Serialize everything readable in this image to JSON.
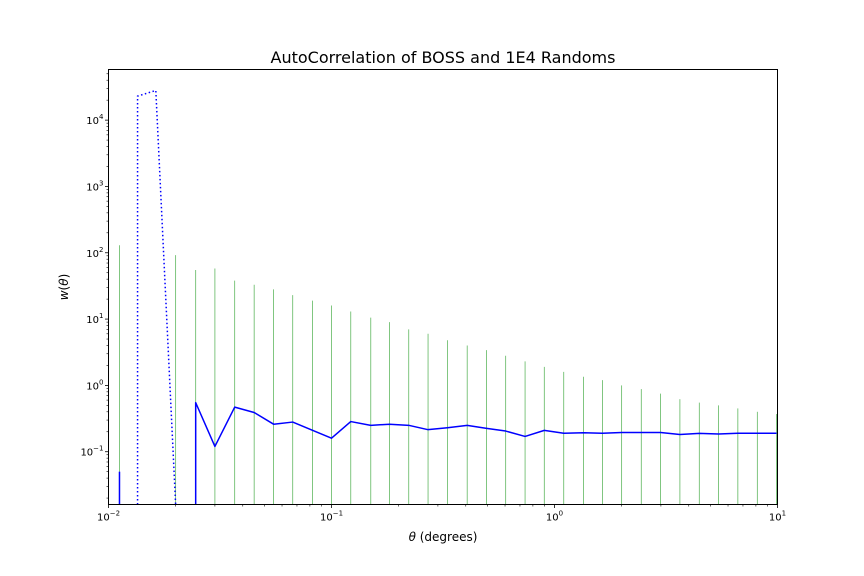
{
  "chart_data": {
    "type": "line",
    "title": "AutoCorrelation of BOSS and 1E4 Randoms",
    "xlabel_var": "θ",
    "xlabel_unit": " (degrees)",
    "ylabel_func": "w",
    "ylabel_var": "θ",
    "xscale": "log",
    "yscale": "log",
    "xlim": [
      0.01,
      10
    ],
    "ylim": [
      0.016,
      58000
    ],
    "x_ticks": [
      {
        "mant": "10",
        "exp": "−2"
      },
      {
        "mant": "10",
        "exp": "−1"
      },
      {
        "mant": "10",
        "exp": "0"
      },
      {
        "mant": "10",
        "exp": "1"
      }
    ],
    "y_ticks": [
      {
        "mant": "10",
        "exp": "−1"
      },
      {
        "mant": "10",
        "exp": "0"
      },
      {
        "mant": "10",
        "exp": "1"
      },
      {
        "mant": "10",
        "exp": "2"
      },
      {
        "mant": "10",
        "exp": "3"
      },
      {
        "mant": "10",
        "exp": "4"
      }
    ],
    "grid": false,
    "legend": "none",
    "series": [
      {
        "kind": "errorbars",
        "color": "#2ca02c",
        "x": [
          0.0112,
          0.0135,
          0.0163,
          0.02,
          0.0246,
          0.03,
          0.0368,
          0.045,
          0.055,
          0.067,
          0.0822,
          0.1,
          0.122,
          0.15,
          0.182,
          0.222,
          0.271,
          0.331,
          0.406,
          0.496,
          0.604,
          0.738,
          0.9,
          1.1,
          1.35,
          1.64,
          2.0,
          2.45,
          2.99,
          3.65,
          4.46,
          5.44,
          6.64,
          8.12,
          9.91
        ],
        "upper": [
          130,
          null,
          null,
          92,
          55,
          58,
          38,
          33,
          28,
          23,
          19,
          16,
          13,
          10.5,
          9,
          7,
          6,
          4.8,
          4,
          3.4,
          2.8,
          2.3,
          1.9,
          1.6,
          1.35,
          1.2,
          1.0,
          0.88,
          0.75,
          0.62,
          0.55,
          0.5,
          0.45,
          0.4,
          0.37
        ]
      },
      {
        "kind": "line",
        "style": "solid",
        "color": "#0000ff",
        "segments": [
          [
            [
              0.0112,
              0.016
            ],
            [
              0.0112,
              0.05
            ]
          ],
          [
            [
              0.0246,
              0.016
            ],
            [
              0.0246,
              0.55
            ],
            [
              0.03,
              0.12
            ],
            [
              0.0368,
              0.47
            ],
            [
              0.045,
              0.39
            ],
            [
              0.055,
              0.26
            ],
            [
              0.067,
              0.28
            ],
            [
              0.0822,
              0.21
            ],
            [
              0.1,
              0.16
            ],
            [
              0.122,
              0.285
            ],
            [
              0.15,
              0.25
            ],
            [
              0.182,
              0.26
            ],
            [
              0.222,
              0.25
            ],
            [
              0.271,
              0.215
            ],
            [
              0.331,
              0.23
            ],
            [
              0.406,
              0.25
            ],
            [
              0.496,
              0.225
            ],
            [
              0.604,
              0.205
            ],
            [
              0.738,
              0.17
            ],
            [
              0.9,
              0.21
            ],
            [
              1.1,
              0.19
            ],
            [
              1.35,
              0.193
            ],
            [
              1.64,
              0.19
            ],
            [
              2.0,
              0.195
            ],
            [
              2.45,
              0.195
            ],
            [
              2.99,
              0.195
            ],
            [
              3.65,
              0.182
            ],
            [
              4.46,
              0.189
            ],
            [
              5.44,
              0.185
            ],
            [
              6.64,
              0.19
            ],
            [
              8.12,
              0.19
            ],
            [
              9.91,
              0.19
            ]
          ]
        ]
      },
      {
        "kind": "line",
        "style": "dotted",
        "color": "#0000ff",
        "segments": [
          [
            [
              0.0135,
              0.016
            ],
            [
              0.0135,
              23000
            ],
            [
              0.0163,
              28000
            ],
            [
              0.02,
              0.016
            ]
          ]
        ]
      }
    ]
  }
}
